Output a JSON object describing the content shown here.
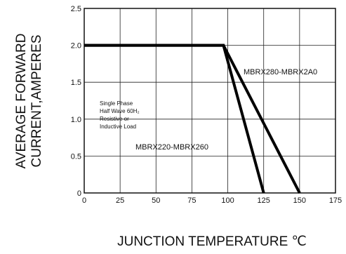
{
  "chart_data": {
    "type": "line",
    "title": "",
    "xlabel": "JUNCTION TEMPERATURE ℃",
    "ylabel": [
      "AVERAGE FORWARD",
      "CURRENT,AMPERES"
    ],
    "xlim": [
      0,
      175
    ],
    "ylim": [
      0,
      2.5
    ],
    "x_ticks": [
      0,
      25,
      50,
      75,
      100,
      125,
      150,
      175
    ],
    "y_ticks": [
      0,
      0.5,
      1.0,
      1.5,
      2.0,
      2.5
    ],
    "x_tick_labels": [
      "0",
      "25",
      "50",
      "75",
      "100",
      "125",
      "150",
      "175"
    ],
    "y_tick_labels": [
      "0",
      "0.5",
      "1.0",
      "1.5",
      "2.0",
      "2.5"
    ],
    "grid": true,
    "series": [
      {
        "name": "MBRX280-MBRX2A0",
        "points": [
          [
            0,
            2.0
          ],
          [
            97,
            2.0
          ],
          [
            150,
            0
          ]
        ]
      },
      {
        "name": "MBRX220-MBRX260",
        "points": [
          [
            0,
            2.0
          ],
          [
            97,
            2.0
          ],
          [
            125,
            0
          ]
        ]
      }
    ],
    "annotations": [
      {
        "lines": [
          "Single Phase",
          "Half Wave 60H₂",
          "Resistive or",
          "Inductive Load"
        ]
      }
    ]
  }
}
